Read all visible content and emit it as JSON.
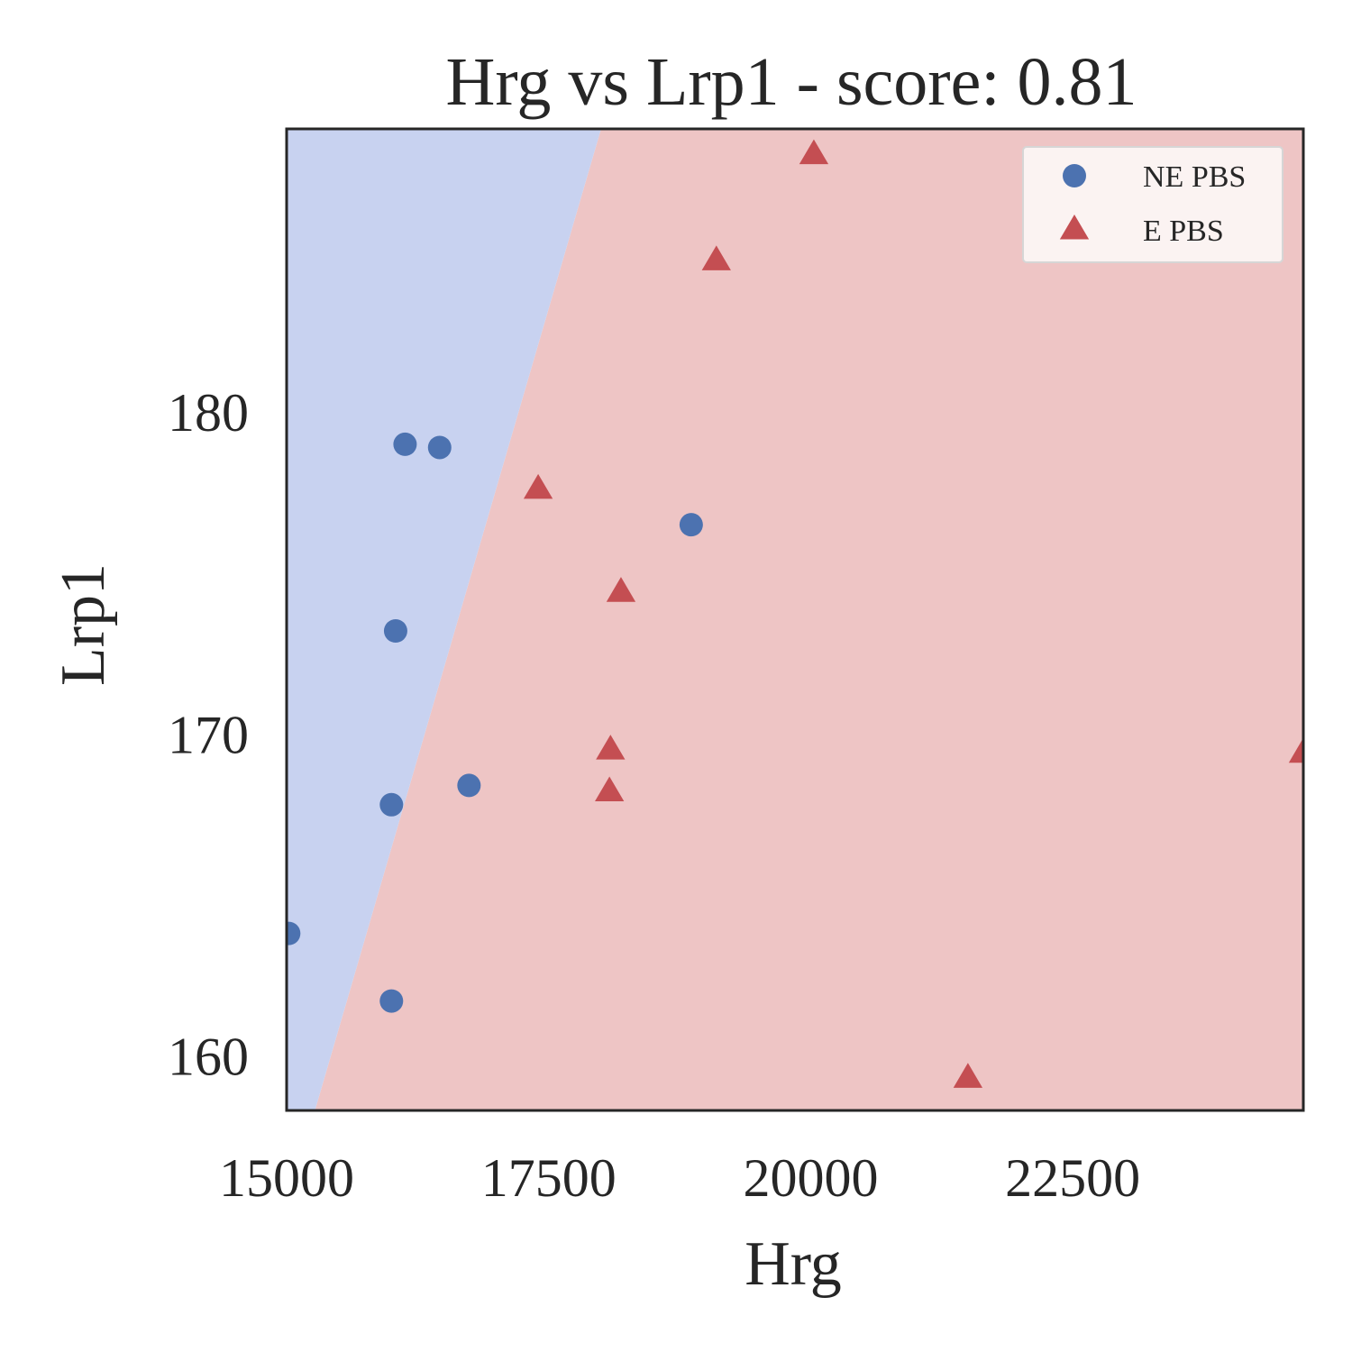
{
  "chart_data": {
    "type": "scatter",
    "title": "Hrg vs Lrp1 - score: 0.81",
    "xlabel": "Hrg",
    "ylabel": "Lrp1",
    "xlim": [
      15000,
      24700
    ],
    "ylim": [
      158.3,
      188.8
    ],
    "xticks": [
      15000,
      17500,
      20000,
      22500
    ],
    "xtick_labels": [
      "15000",
      "17500",
      "20000",
      "22500"
    ],
    "yticks": [
      160,
      170,
      180
    ],
    "ytick_labels": [
      "160",
      "170",
      "180"
    ],
    "grid": false,
    "legend_position": "top-right",
    "regions": [
      {
        "class": "NE PBS",
        "color": "#c8d2f0"
      },
      {
        "class": "E PBS",
        "color": "#eec5c5"
      }
    ],
    "decision_boundary": [
      [
        18000,
        188.8
      ],
      [
        15270,
        158.3
      ]
    ],
    "series": [
      {
        "name": "NE PBS",
        "marker": "circle",
        "color": "#4c72b0",
        "points": [
          [
            16130,
            179.0
          ],
          [
            16460,
            178.9
          ],
          [
            18860,
            176.5
          ],
          [
            16040,
            173.2
          ],
          [
            16000,
            167.8
          ],
          [
            16740,
            168.4
          ],
          [
            15020,
            163.8
          ],
          [
            16000,
            161.7
          ]
        ]
      },
      {
        "name": "E PBS",
        "marker": "triangle",
        "color": "#c44e52",
        "points": [
          [
            20030,
            188.0
          ],
          [
            19100,
            184.7
          ],
          [
            17400,
            177.6
          ],
          [
            18190,
            174.4
          ],
          [
            18090,
            169.5
          ],
          [
            18080,
            168.2
          ],
          [
            21500,
            159.3
          ],
          [
            24700,
            169.4
          ]
        ]
      }
    ]
  }
}
